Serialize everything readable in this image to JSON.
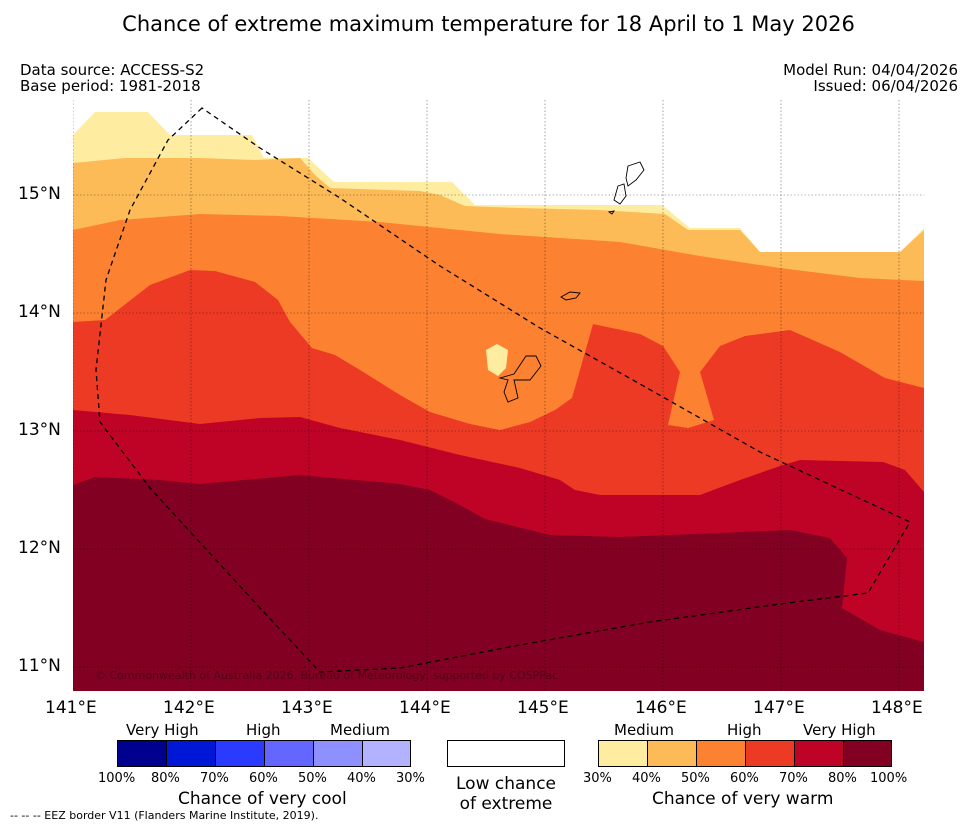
{
  "title": "Chance of extreme maximum temperature for 18 April to 1 May 2026",
  "meta": {
    "data_source": "Data source: ACCESS-S2",
    "base_period": "Base period: 1981-2018",
    "model_run": "Model Run: 04/04/2026",
    "issued": "Issued: 06/04/2026"
  },
  "map": {
    "lat_labels": [
      "15°N",
      "14°N",
      "13°N",
      "12°N",
      "11°N"
    ],
    "lon_labels": [
      "141°E",
      "142°E",
      "143°E",
      "144°E",
      "145°E",
      "146°E",
      "147°E",
      "148°E"
    ],
    "copyright": "© Commonwealth of Australia 2026, Bureau of Meteorology, supported by COSPPac",
    "bands": [
      {
        "name": "30-40% warm",
        "color": "#feeda0"
      },
      {
        "name": "40-50% warm",
        "color": "#fdbb58"
      },
      {
        "name": "50-60% warm",
        "color": "#fc8232"
      },
      {
        "name": "60-70% warm",
        "color": "#ec3a25"
      },
      {
        "name": "70-80% warm",
        "color": "#bf0326"
      },
      {
        "name": "80-100% warm",
        "color": "#820022"
      }
    ]
  },
  "legend": {
    "cool": {
      "categories": [
        "Very High",
        "High",
        "Medium"
      ],
      "colors": [
        "#00008f",
        "#0018d6",
        "#2b3aff",
        "#6366ff",
        "#8f90ff",
        "#b2b2ff"
      ],
      "percents": [
        "100%",
        "80%",
        "70%",
        "60%",
        "50%",
        "40%",
        "30%"
      ],
      "title": "Chance of very cool"
    },
    "neutral": {
      "line1": "Low chance",
      "line2": "of extreme",
      "color": "#ffffff"
    },
    "warm": {
      "categories": [
        "Medium",
        "High",
        "Very High"
      ],
      "colors": [
        "#feeda0",
        "#fdbb58",
        "#fc8232",
        "#ec3a25",
        "#bf0326",
        "#820022"
      ],
      "percents": [
        "30%",
        "40%",
        "50%",
        "60%",
        "70%",
        "80%",
        "100%"
      ],
      "title": "Chance of very warm"
    }
  },
  "footer": "--  --  -- EEZ border V11 (Flanders Marine Institute, 2019)."
}
